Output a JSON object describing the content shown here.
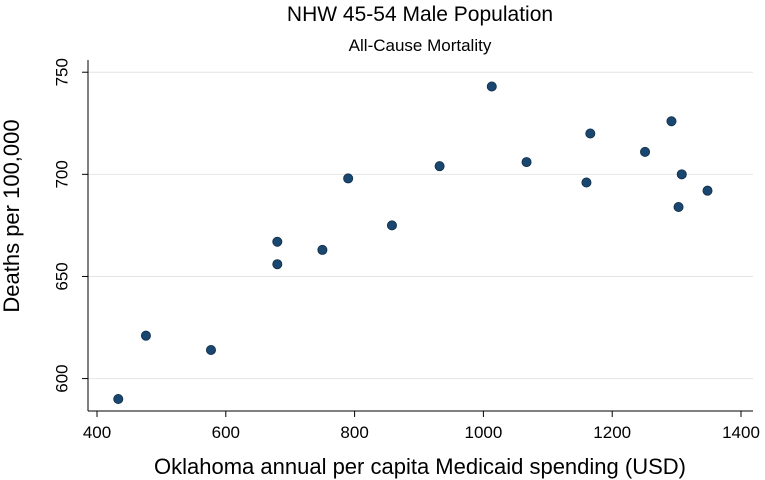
{
  "chart_data": {
    "type": "scatter",
    "title": "NHW 45-54 Male Population",
    "subtitle": "All-Cause Mortality",
    "xlabel": "Oklahoma annual per capita Medicaid spending (USD)",
    "ylabel": "Deaths per 100,000",
    "xlim": [
      400,
      1400
    ],
    "ylim": [
      590,
      755
    ],
    "xticks": [
      400,
      600,
      800,
      1000,
      1200,
      1400
    ],
    "yticks": [
      600,
      650,
      700,
      750
    ],
    "grid": true,
    "marker_color": "#1a476f",
    "series": [
      {
        "name": "Deaths per 100,000",
        "points": [
          {
            "x": 433,
            "y": 590
          },
          {
            "x": 476,
            "y": 621
          },
          {
            "x": 577,
            "y": 614
          },
          {
            "x": 680,
            "y": 667
          },
          {
            "x": 680,
            "y": 656
          },
          {
            "x": 750,
            "y": 663
          },
          {
            "x": 790,
            "y": 698
          },
          {
            "x": 858,
            "y": 675
          },
          {
            "x": 932,
            "y": 704
          },
          {
            "x": 1013,
            "y": 743
          },
          {
            "x": 1067,
            "y": 706
          },
          {
            "x": 1160,
            "y": 696
          },
          {
            "x": 1166,
            "y": 720
          },
          {
            "x": 1251,
            "y": 711
          },
          {
            "x": 1292,
            "y": 726
          },
          {
            "x": 1303,
            "y": 684
          },
          {
            "x": 1308,
            "y": 700
          },
          {
            "x": 1348,
            "y": 692
          }
        ]
      }
    ]
  }
}
